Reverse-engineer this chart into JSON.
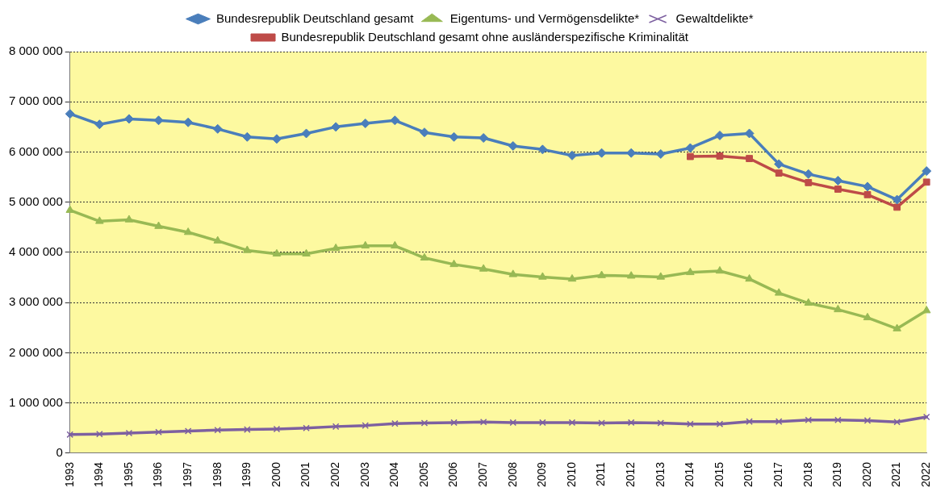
{
  "chart_data": {
    "type": "line",
    "categories": [
      "1993",
      "1994",
      "1995",
      "1996",
      "1997",
      "1998",
      "1999",
      "2000",
      "2001",
      "2002",
      "2003",
      "2004",
      "2005",
      "2006",
      "2007",
      "2008",
      "2009",
      "2010",
      "2011",
      "2012",
      "2013",
      "2014",
      "2015",
      "2016",
      "2017",
      "2018",
      "2019",
      "2020",
      "2021",
      "2022"
    ],
    "series": [
      {
        "name": "Bundesrepublik Deutschland gesamt",
        "color": "#4a7ebb",
        "marker": "diamond",
        "values": [
          6760000,
          6550000,
          6660000,
          6630000,
          6590000,
          6460000,
          6300000,
          6260000,
          6370000,
          6500000,
          6570000,
          6630000,
          6390000,
          6300000,
          6280000,
          6120000,
          6050000,
          5930000,
          5980000,
          5980000,
          5960000,
          6080000,
          6330000,
          6370000,
          5760000,
          5560000,
          5430000,
          5310000,
          5050000,
          5620000
        ]
      },
      {
        "name": "Eigentums- und Vermögensdelikte*",
        "color": "#98b954",
        "marker": "triangle",
        "values": [
          4840000,
          4620000,
          4650000,
          4520000,
          4400000,
          4230000,
          4040000,
          3970000,
          3970000,
          4080000,
          4130000,
          4130000,
          3890000,
          3760000,
          3670000,
          3560000,
          3510000,
          3470000,
          3540000,
          3530000,
          3510000,
          3600000,
          3630000,
          3470000,
          3190000,
          2990000,
          2860000,
          2700000,
          2480000,
          2840000
        ]
      },
      {
        "name": "Gewaltdelikte*",
        "color": "#7d60a0",
        "marker": "cross",
        "values": [
          370000,
          380000,
          400000,
          420000,
          440000,
          460000,
          470000,
          480000,
          500000,
          530000,
          550000,
          590000,
          600000,
          610000,
          620000,
          610000,
          610000,
          610000,
          600000,
          610000,
          600000,
          580000,
          580000,
          630000,
          630000,
          660000,
          660000,
          650000,
          620000,
          720000
        ]
      },
      {
        "name": "Bundesrepublik Deutschland gesamt ohne ausländerspezifische Kriminalität",
        "color": "#be4b48",
        "marker": "square",
        "values": [
          null,
          null,
          null,
          null,
          null,
          null,
          null,
          null,
          null,
          null,
          null,
          null,
          null,
          null,
          null,
          null,
          null,
          null,
          null,
          null,
          null,
          5910000,
          5920000,
          5870000,
          5580000,
          5390000,
          5260000,
          5150000,
          4900000,
          5400000
        ]
      }
    ],
    "ylim": [
      0,
      8000000
    ],
    "yticks": [
      {
        "value": 0,
        "label": "0"
      },
      {
        "value": 1000000,
        "label": "1 000 000"
      },
      {
        "value": 2000000,
        "label": "2 000 000"
      },
      {
        "value": 3000000,
        "label": "3 000 000"
      },
      {
        "value": 4000000,
        "label": "4 000 000"
      },
      {
        "value": 5000000,
        "label": "5 000 000"
      },
      {
        "value": 6000000,
        "label": "6 000 000"
      },
      {
        "value": 7000000,
        "label": "7 000 000"
      },
      {
        "value": 8000000,
        "label": "8 000 000"
      }
    ],
    "grid": "y",
    "legend": "top",
    "line_style": "solid"
  }
}
